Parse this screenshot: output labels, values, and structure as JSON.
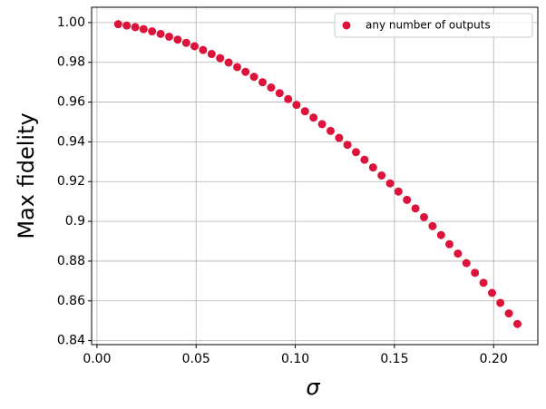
{
  "chart_data": {
    "type": "scatter",
    "xlabel": "σ",
    "ylabel": "Max fidelity",
    "x": [
      0.0107,
      0.015,
      0.0193,
      0.0235,
      0.0278,
      0.0321,
      0.0364,
      0.0407,
      0.045,
      0.0492,
      0.0535,
      0.0578,
      0.0621,
      0.0664,
      0.0707,
      0.0749,
      0.0792,
      0.0835,
      0.0878,
      0.0921,
      0.0964,
      0.1006,
      0.1049,
      0.1092,
      0.1135,
      0.1178,
      0.1221,
      0.1263,
      0.1306,
      0.1349,
      0.1392,
      0.1435,
      0.1478,
      0.152,
      0.1563,
      0.1606,
      0.1649,
      0.1692,
      0.1735,
      0.1777,
      0.182,
      0.1863,
      0.1906,
      0.1949,
      0.1992,
      0.2034,
      0.2077,
      0.212
    ],
    "series": [
      {
        "name": "any number of outputs",
        "color": "#dc143c",
        "values": [
          0.9992,
          0.9985,
          0.9977,
          0.9967,
          0.9956,
          0.9943,
          0.9929,
          0.9914,
          0.9898,
          0.9881,
          0.9862,
          0.9842,
          0.9821,
          0.9799,
          0.9776,
          0.9752,
          0.9727,
          0.97,
          0.9673,
          0.9645,
          0.9615,
          0.9586,
          0.9554,
          0.9522,
          0.9489,
          0.9455,
          0.942,
          0.9385,
          0.9348,
          0.931,
          0.9271,
          0.9231,
          0.9191,
          0.915,
          0.9108,
          0.9065,
          0.9021,
          0.8976,
          0.8931,
          0.8885,
          0.8838,
          0.879,
          0.8741,
          0.8691,
          0.864,
          0.859,
          0.8537,
          0.8484
        ]
      }
    ],
    "xlim": [
      -0.0027,
      0.2223
    ],
    "xticks": [
      {
        "value": 0,
        "label": "0.00"
      },
      {
        "value": 0.05,
        "label": "0.05"
      },
      {
        "value": 0.1,
        "label": "0.10"
      },
      {
        "value": 0.15,
        "label": "0.15"
      },
      {
        "value": 0.2,
        "label": "0.20"
      }
    ],
    "ylim": [
      0.838,
      1.0077
    ],
    "yticks": [
      0.84,
      0.86,
      0.88,
      0.9,
      0.92,
      0.94,
      0.96,
      0.98,
      {
        "value": 1,
        "label": "1.00"
      }
    ],
    "grid": true,
    "legend": "upper right"
  }
}
